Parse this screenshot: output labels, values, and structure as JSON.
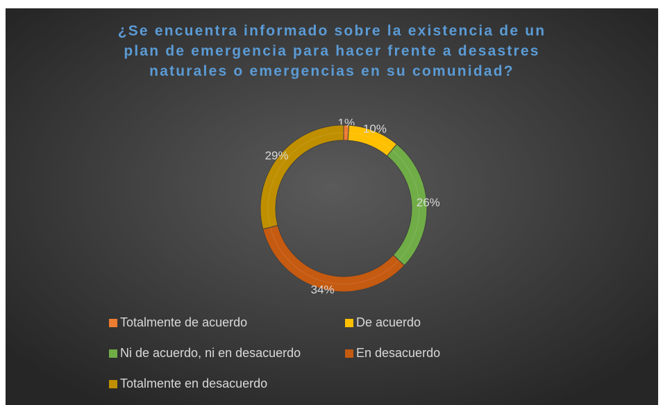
{
  "chart_data": {
    "type": "donut",
    "title": "¿Se encuentra informado sobre la existencia de un plan de emergencia para hacer frente a desastres naturales o emergencias en su comunidad?",
    "categories": [
      "Totalmente de acuerdo",
      "De acuerdo",
      "Ni de acuerdo, ni en desacuerdo",
      "En desacuerdo",
      "Totalmente en desacuerdo"
    ],
    "values": [
      1,
      10,
      26,
      34,
      29
    ],
    "value_labels": [
      "1%",
      "10%",
      "26%",
      "34%",
      "29%"
    ],
    "colors": [
      "#ed7d31",
      "#ffc000",
      "#70ad47",
      "#c55a11",
      "#bf8f00"
    ],
    "legend": "bottom"
  }
}
